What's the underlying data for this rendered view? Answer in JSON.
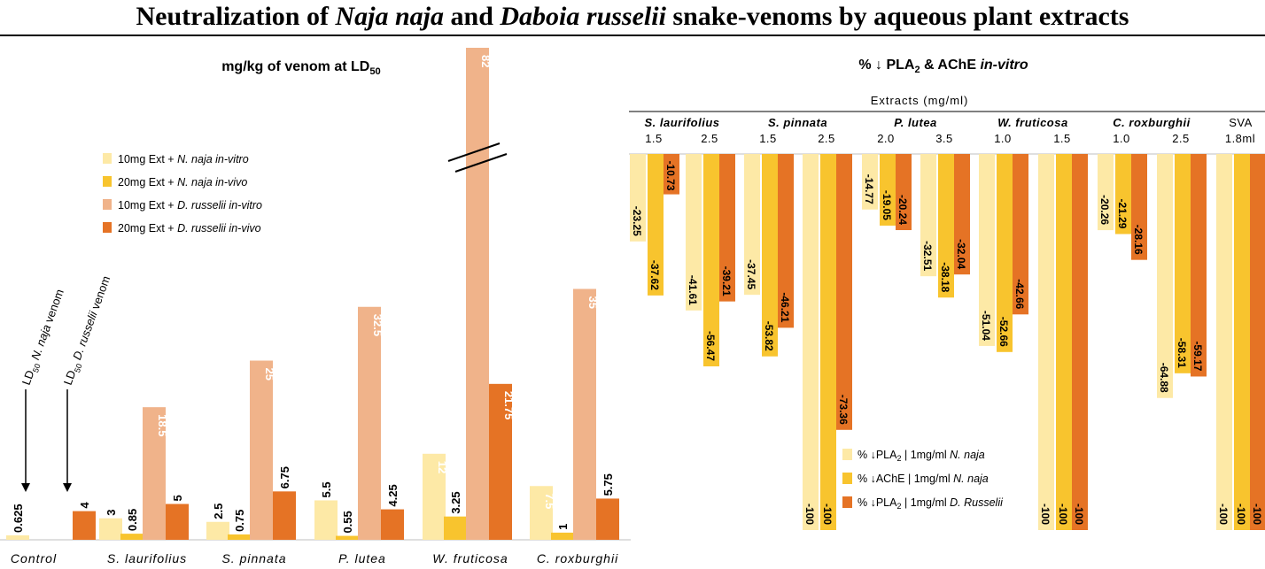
{
  "title": {
    "prefix": "Neutralization of ",
    "species1": "Naja naja",
    "middle": " and ",
    "species2": "Daboia russelii",
    "suffix": " snake-venoms by aqueous plant extracts"
  },
  "colors": {
    "light_yellow": "#fde9a6",
    "yellow": "#f8c42e",
    "light_orange": "#f0b38a",
    "orange": "#e57325"
  },
  "chart_data": [
    {
      "type": "bar",
      "title": "mg/kg of venom at LD50",
      "categories": [
        "Control",
        "S. laurifolius",
        "S. pinnata",
        "P. lutea",
        "W. fruticosa",
        "C. roxburghii"
      ],
      "series": [
        {
          "name": "10mg Ext + N. naja in-vitro",
          "values": [
            0.625,
            3,
            2.5,
            5.5,
            12,
            7.5
          ],
          "value_labels": [
            "0.625",
            "3",
            "2.5",
            "5.5",
            "12",
            "7.5"
          ],
          "color": "#fde9a6"
        },
        {
          "name": "20mg Ext + N. naja in-vivo",
          "values": [
            null,
            0.85,
            0.75,
            0.55,
            3.25,
            1
          ],
          "value_labels": [
            "",
            "0.85",
            "0.75",
            "0.55",
            "3.25",
            "1"
          ],
          "color": "#f8c42e"
        },
        {
          "name": "10mg Ext + D. russelii in-vitro",
          "values": [
            null,
            18.5,
            25,
            32.5,
            82,
            35
          ],
          "value_labels": [
            "",
            "18.5",
            "25",
            "32.5",
            "82",
            "35"
          ],
          "color": "#f0b38a"
        },
        {
          "name": "20mg Ext + D. russelii in-vivo",
          "values": [
            4,
            5,
            6.75,
            4.25,
            21.75,
            5.75
          ],
          "value_labels": [
            "4",
            "5",
            "6.75",
            "4.25",
            "21.75",
            "5.75"
          ],
          "color": "#e57325"
        }
      ],
      "axis_break": true,
      "annotations": [
        "LD50 N. naja venom",
        "LD50 D. russelii venom"
      ],
      "legend_position": "upper-left"
    },
    {
      "type": "bar",
      "title": "% ↓ PLA2 & AChE in-vitro",
      "x_group_title": "Extracts (mg/ml)",
      "groups": [
        {
          "name": "S. laurifolius",
          "doses": [
            "1.5",
            "2.5"
          ]
        },
        {
          "name": "S. pinnata",
          "doses": [
            "1.5",
            "2.5"
          ]
        },
        {
          "name": "P. lutea",
          "doses": [
            "2.0",
            "3.5"
          ]
        },
        {
          "name": "W. fruticosa",
          "doses": [
            "1.0",
            "1.5"
          ]
        },
        {
          "name": "C. roxburghii",
          "doses": [
            "1.0",
            "2.5"
          ]
        },
        {
          "name": "SVA",
          "doses": [
            "1.8ml"
          ]
        }
      ],
      "series": [
        {
          "name": "% ↓PLA2 | 1mg/ml N. naja",
          "values": [
            -23.25,
            -41.61,
            -37.45,
            -100,
            -14.77,
            -32.51,
            -51.04,
            -100,
            -20.26,
            -64.88,
            -100
          ],
          "value_labels": [
            "-23.25",
            "-41.61",
            "-37.45",
            "-100",
            "-14.77",
            "-32.51",
            "-51.04",
            "-100",
            "-20.26",
            "-64.88",
            "-100"
          ],
          "color": "#fde9a6"
        },
        {
          "name": "% ↓AChE | 1mg/ml N. naja",
          "values": [
            -37.62,
            -56.47,
            -53.82,
            -100,
            -19.05,
            -38.18,
            -52.66,
            -100,
            -21.29,
            -58.31,
            -100
          ],
          "value_labels": [
            "-37.62",
            "-56.47",
            "-53.82",
            "-100",
            "-19.05",
            "-38.18",
            "-52.66",
            "-100",
            "-21.29",
            "-58.31",
            "-100"
          ],
          "color": "#f8c42e"
        },
        {
          "name": "% ↓PLA2 | 1mg/ml D. Russelii",
          "values": [
            -10.73,
            -39.21,
            -46.21,
            -73.36,
            -20.24,
            -32.04,
            -42.66,
            -100,
            -28.16,
            -59.17,
            -100
          ],
          "value_labels": [
            "-10.73",
            "-39.21",
            "-46.21",
            "-73.36",
            "-20.24",
            "-32.04",
            "-42.66",
            "-100",
            "-28.16",
            "-59.17",
            "-100"
          ],
          "color": "#e57325"
        }
      ],
      "legend_position": "lower-right"
    }
  ]
}
